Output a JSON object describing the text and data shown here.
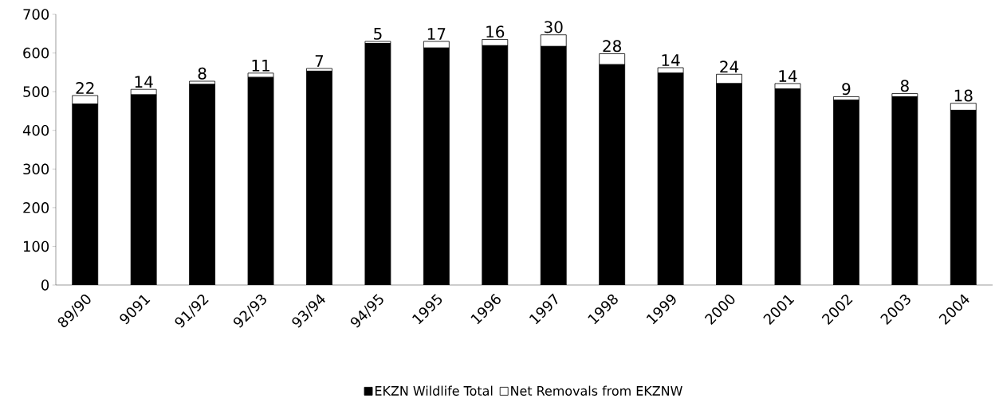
{
  "chart_data": {
    "type": "bar",
    "stacked": true,
    "categories": [
      "89/90",
      "9091",
      "91/92",
      "92/93",
      "93/94",
      "94/95",
      "1995",
      "1996",
      "1997",
      "1998",
      "1999",
      "2000",
      "2001",
      "2002",
      "2003",
      "2004"
    ],
    "series": [
      {
        "name": "EKZN Wildlife Total",
        "color": "#000000",
        "values": [
          468,
          492,
          519,
          537,
          553,
          625,
          613,
          619,
          617,
          570,
          548,
          521,
          507,
          478,
          487,
          452
        ]
      },
      {
        "name": "Net Removals from EKZNW",
        "color": "#ffffff",
        "values": [
          22,
          14,
          8,
          11,
          7,
          5,
          17,
          16,
          30,
          28,
          14,
          24,
          14,
          9,
          8,
          18
        ],
        "value_labels": [
          "22",
          "14",
          "8",
          "11",
          "7",
          "5",
          "17",
          "16",
          "30",
          "28",
          "14",
          "24",
          "14",
          "9",
          "8",
          "18"
        ]
      }
    ],
    "ylim": [
      0,
      700
    ],
    "yticks": [
      0,
      100,
      200,
      300,
      400,
      500,
      600,
      700
    ],
    "grid": false,
    "legend": "bottom"
  }
}
